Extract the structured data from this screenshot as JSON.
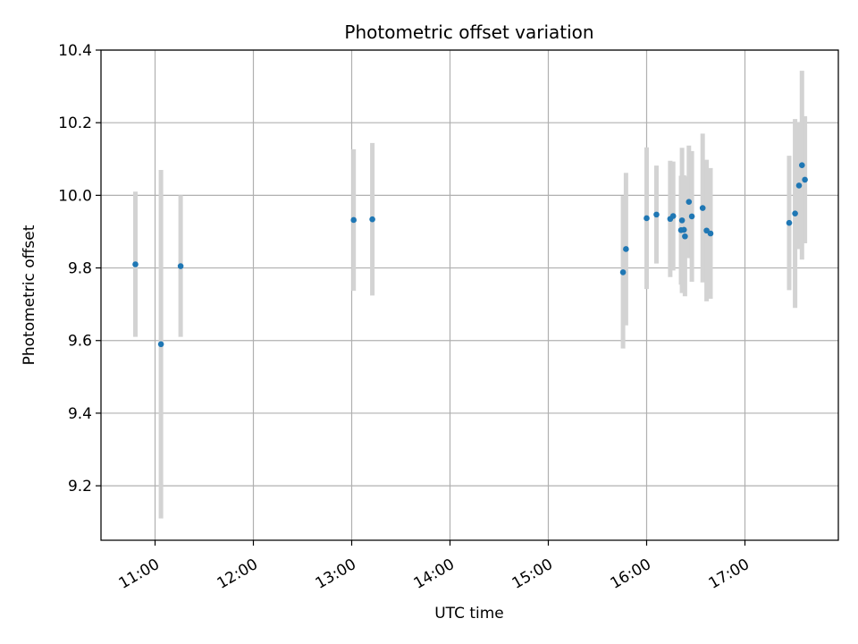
{
  "chart_data": {
    "type": "scatter",
    "title": "Photometric offset variation",
    "xlabel": "UTC time",
    "ylabel": "Photometric offset",
    "x_unit": "hour",
    "xlim": [
      10.45,
      17.95
    ],
    "ylim": [
      9.05,
      10.4
    ],
    "x_ticks": [
      {
        "value": 11,
        "label": "11:00"
      },
      {
        "value": 12,
        "label": "12:00"
      },
      {
        "value": 13,
        "label": "13:00"
      },
      {
        "value": 14,
        "label": "14:00"
      },
      {
        "value": 15,
        "label": "15:00"
      },
      {
        "value": 16,
        "label": "16:00"
      },
      {
        "value": 17,
        "label": "17:00"
      }
    ],
    "y_ticks": [
      {
        "value": 9.2,
        "label": "9.2"
      },
      {
        "value": 9.4,
        "label": "9.4"
      },
      {
        "value": 9.6,
        "label": "9.6"
      },
      {
        "value": 9.8,
        "label": "9.8"
      },
      {
        "value": 10.0,
        "label": "10.0"
      },
      {
        "value": 10.2,
        "label": "10.2"
      },
      {
        "value": 10.4,
        "label": "10.4"
      }
    ],
    "grid": true,
    "marker_color": "#1f77b4",
    "errorbar_color": "#d3d3d3",
    "points": [
      {
        "x": 10.8,
        "y": 9.81,
        "err": 0.2
      },
      {
        "x": 11.06,
        "y": 9.59,
        "err": 0.48
      },
      {
        "x": 11.26,
        "y": 9.805,
        "err": 0.195
      },
      {
        "x": 13.02,
        "y": 9.932,
        "err": 0.195
      },
      {
        "x": 13.21,
        "y": 9.934,
        "err": 0.21
      },
      {
        "x": 15.76,
        "y": 9.788,
        "err": 0.21
      },
      {
        "x": 15.79,
        "y": 9.852,
        "err": 0.21
      },
      {
        "x": 16.0,
        "y": 9.937,
        "err": 0.195
      },
      {
        "x": 16.1,
        "y": 9.947,
        "err": 0.135
      },
      {
        "x": 16.24,
        "y": 9.935,
        "err": 0.16
      },
      {
        "x": 16.27,
        "y": 9.943,
        "err": 0.15
      },
      {
        "x": 16.35,
        "y": 9.904,
        "err": 0.15
      },
      {
        "x": 16.36,
        "y": 9.931,
        "err": 0.2
      },
      {
        "x": 16.38,
        "y": 9.905,
        "err": 0.15
      },
      {
        "x": 16.39,
        "y": 9.887,
        "err": 0.165
      },
      {
        "x": 16.43,
        "y": 9.982,
        "err": 0.155
      },
      {
        "x": 16.46,
        "y": 9.942,
        "err": 0.18
      },
      {
        "x": 16.57,
        "y": 9.965,
        "err": 0.205
      },
      {
        "x": 16.61,
        "y": 9.903,
        "err": 0.195
      },
      {
        "x": 16.65,
        "y": 9.895,
        "err": 0.18
      },
      {
        "x": 17.45,
        "y": 9.924,
        "err": 0.185
      },
      {
        "x": 17.51,
        "y": 9.95,
        "err": 0.26
      },
      {
        "x": 17.55,
        "y": 10.027,
        "err": 0.175
      },
      {
        "x": 17.58,
        "y": 10.083,
        "err": 0.26
      },
      {
        "x": 17.61,
        "y": 10.043,
        "err": 0.175
      }
    ]
  }
}
